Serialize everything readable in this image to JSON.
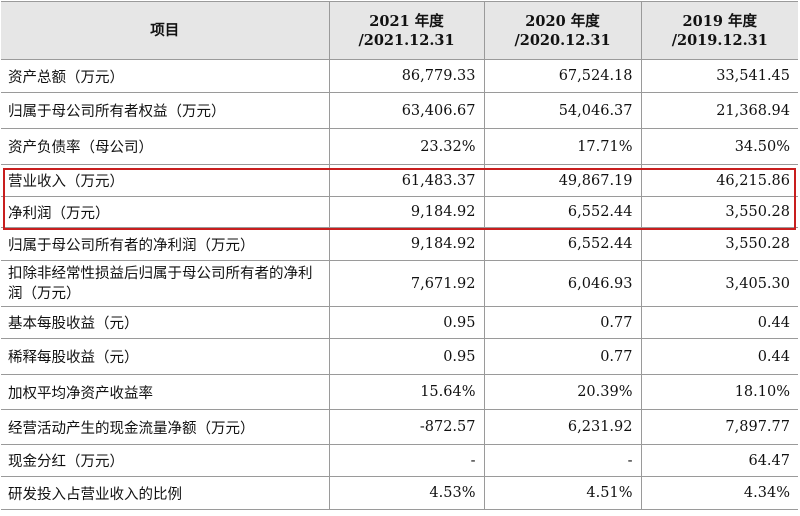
{
  "columns": {
    "item": "项目",
    "col_2021": {
      "year": "2021 年度",
      "date": "/2021.12.31"
    },
    "col_2020": {
      "year": "2020 年度",
      "date": "/2020.12.31"
    },
    "col_2019": {
      "year": "2019 年度",
      "date": "/2019.12.31"
    }
  },
  "rows": [
    {
      "label": "资产总额（万元）",
      "v2021": "86,779.33",
      "v2020": "67,524.18",
      "v2019": "33,541.45"
    },
    {
      "label": "归属于母公司所有者权益（万元）",
      "v2021": "63,406.67",
      "v2020": "54,046.37",
      "v2019": "21,368.94"
    },
    {
      "label": "资产负债率（母公司）",
      "v2021": "23.32%",
      "v2020": "17.71%",
      "v2019": "34.50%"
    },
    {
      "label": "营业收入（万元）",
      "v2021": "61,483.37",
      "v2020": "49,867.19",
      "v2019": "46,215.86"
    },
    {
      "label": "净利润（万元）",
      "v2021": "9,184.92",
      "v2020": "6,552.44",
      "v2019": "3,550.28"
    },
    {
      "label": "归属于母公司所有者的净利润（万元）",
      "v2021": "9,184.92",
      "v2020": "6,552.44",
      "v2019": "3,550.28"
    },
    {
      "label": "扣除非经常性损益后归属于母公司所有者的净利润（万元）",
      "v2021": "7,671.92",
      "v2020": "6,046.93",
      "v2019": "3,405.30"
    },
    {
      "label": "基本每股收益（元）",
      "v2021": "0.95",
      "v2020": "0.77",
      "v2019": "0.44"
    },
    {
      "label": "稀释每股收益（元）",
      "v2021": "0.95",
      "v2020": "0.77",
      "v2019": "0.44"
    },
    {
      "label": "加权平均净资产收益率",
      "v2021": "15.64%",
      "v2020": "20.39%",
      "v2019": "18.10%"
    },
    {
      "label": "经营活动产生的现金流量净额（万元）",
      "v2021": "-872.57",
      "v2020": "6,231.92",
      "v2019": "7,897.77"
    },
    {
      "label": "现金分红（万元）",
      "v2021": "-",
      "v2020": "-",
      "v2019": "64.47"
    },
    {
      "label": "研发投入占营业收入的比例",
      "v2021": "4.53%",
      "v2020": "4.51%",
      "v2019": "4.34%"
    }
  ],
  "highlight": {
    "color": "#c81e1e",
    "rows": [
      "营业收入（万元）",
      "净利润（万元）"
    ]
  },
  "colors": {
    "header_bg": "#e6e6e6",
    "grid": "#9a9a9a"
  }
}
